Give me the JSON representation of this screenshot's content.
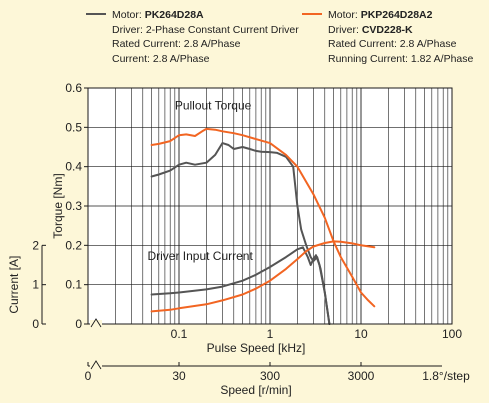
{
  "legend": [
    {
      "color": "#555555",
      "motor_label": "Motor: ",
      "motor": "PK264D28A",
      "driver_label": "Driver: ",
      "driver": "2-Phase Constant Current Driver",
      "driver_bold": false,
      "line3": "Rated Current: 2.8 A/Phase",
      "line4": "Current: 2.8 A/Phase"
    },
    {
      "color": "#f26522",
      "motor_label": "Motor: ",
      "motor": "PKP264D28A2",
      "driver_label": "Driver: ",
      "driver": "CVD228-K",
      "driver_bold": true,
      "line3": "Rated Current: 2.8 A/Phase",
      "line4": "Running Current: 1.82 A/Phase"
    }
  ],
  "chart_data": {
    "type": "line",
    "x_scale": "log",
    "xlim": [
      0.01,
      100
    ],
    "ylim": [
      0,
      0.6
    ],
    "xlabel": "Pulse Speed [kHz]",
    "ylabel": "Torque [Nm]",
    "x_ticks": [
      "0.1",
      "1",
      "10",
      "100"
    ],
    "y_ticks": [
      "0",
      "0.1",
      "0.2",
      "0.3",
      "0.4",
      "0.5",
      "0.6"
    ],
    "secondary_ylabel": "Current [A]",
    "secondary_y_ticks": [
      "0",
      "1",
      "2"
    ],
    "secondary_ylim": [
      0,
      3
    ],
    "secondary_xlabel": "Speed [r/min]",
    "secondary_x_ticks": [
      "0",
      "30",
      "300",
      "3000"
    ],
    "secondary_x_suffix": "1.8°/step",
    "annotations": [
      "Pullout Torque",
      "Driver Input Current"
    ],
    "series": [
      {
        "name": "PK264D28A",
        "kind": "torque",
        "color": "#555555",
        "x": [
          0.05,
          0.06,
          0.08,
          0.1,
          0.12,
          0.15,
          0.2,
          0.25,
          0.3,
          0.35,
          0.4,
          0.5,
          0.6,
          0.7,
          0.8,
          1.0,
          1.2,
          1.5,
          1.8,
          2.0,
          2.2,
          2.5,
          2.8,
          3.0,
          3.3,
          3.6,
          4.0,
          4.5
        ],
        "y": [
          0.375,
          0.38,
          0.39,
          0.405,
          0.41,
          0.405,
          0.41,
          0.43,
          0.46,
          0.455,
          0.445,
          0.45,
          0.445,
          0.44,
          0.438,
          0.437,
          0.435,
          0.425,
          0.4,
          0.3,
          0.24,
          0.2,
          0.17,
          0.16,
          0.17,
          0.14,
          0.08,
          0.0
        ]
      },
      {
        "name": "PKP264D28A2",
        "kind": "torque",
        "color": "#f26522",
        "x": [
          0.05,
          0.06,
          0.08,
          0.1,
          0.12,
          0.15,
          0.18,
          0.2,
          0.25,
          0.3,
          0.4,
          0.5,
          0.7,
          1.0,
          1.5,
          2.0,
          3.0,
          4.0,
          5.0,
          6.0,
          8.0,
          10.0,
          12.0,
          14.0
        ],
        "y": [
          0.455,
          0.458,
          0.465,
          0.48,
          0.482,
          0.478,
          0.49,
          0.496,
          0.494,
          0.49,
          0.485,
          0.48,
          0.47,
          0.46,
          0.43,
          0.4,
          0.33,
          0.27,
          0.21,
          0.17,
          0.12,
          0.08,
          0.06,
          0.045
        ]
      },
      {
        "name": "PK264D28A",
        "kind": "current",
        "color": "#555555",
        "x": [
          0.05,
          0.08,
          0.1,
          0.2,
          0.3,
          0.5,
          0.7,
          1.0,
          1.5,
          2.0,
          2.3,
          2.6,
          2.8,
          3.0,
          3.2,
          3.5,
          4.0,
          4.5
        ],
        "y": [
          0.075,
          0.078,
          0.08,
          0.088,
          0.095,
          0.11,
          0.125,
          0.145,
          0.17,
          0.19,
          0.195,
          0.17,
          0.15,
          0.165,
          0.175,
          0.15,
          0.08,
          0.0
        ]
      },
      {
        "name": "PKP264D28A2",
        "kind": "current",
        "color": "#f26522",
        "x": [
          0.05,
          0.08,
          0.1,
          0.2,
          0.3,
          0.5,
          0.7,
          1.0,
          1.5,
          2.0,
          2.5,
          3.0,
          4.0,
          5.0,
          6.0,
          8.0,
          10.0,
          14.0
        ],
        "y": [
          0.032,
          0.036,
          0.04,
          0.05,
          0.06,
          0.075,
          0.09,
          0.11,
          0.14,
          0.165,
          0.185,
          0.197,
          0.206,
          0.21,
          0.209,
          0.205,
          0.2,
          0.195
        ]
      }
    ]
  }
}
